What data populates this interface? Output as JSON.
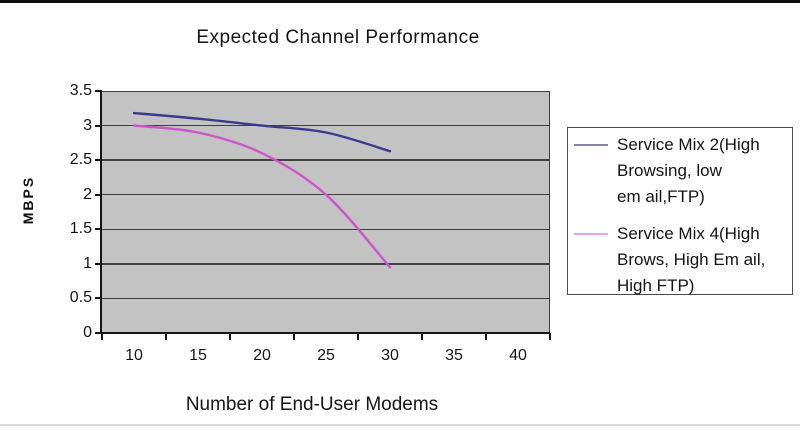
{
  "page": {
    "top_rule_color": "#0d0d0d",
    "bottom_rule_color": "#dcdcdc",
    "background": "#ffffff"
  },
  "chart": {
    "title": "Expected Channel Performance",
    "y_axis": {
      "label": "MBPS"
    },
    "x_axis": {
      "label": "Number of End-User Modems"
    },
    "colors": {
      "plot_background": "#c3c3c3",
      "gridline": "#3f3f3f",
      "axis": "#141414"
    }
  },
  "legend": {
    "entries": [
      {
        "lines": [
          "Service Mix 2(High",
          "Browsing, low",
          "em ail,FTP)"
        ],
        "sample_color": "#8484b0"
      },
      {
        "lines": [
          "Service Mix 4(High",
          "Brows, High Em ail,",
          "High FTP)"
        ],
        "sample_color": "#eda0e2"
      }
    ]
  },
  "chart_data": {
    "type": "line",
    "title": "Expected Channel Performance",
    "xlabel": "Number of End-User Modems",
    "ylabel": "MBPS",
    "x_ticks": [
      10,
      15,
      20,
      25,
      30,
      35,
      40
    ],
    "y_ticks": [
      3.5,
      3,
      2.5,
      2,
      1.5,
      1,
      0.5,
      0
    ],
    "xlim": [
      7.5,
      42.5
    ],
    "ylim": [
      0,
      3.5
    ],
    "grid": "horizontal",
    "legend_position": "right",
    "smoothed_lines": true,
    "x": [
      10,
      15,
      20,
      25,
      30
    ],
    "series": [
      {
        "name": "Service Mix 2 (High Browsing, low email, FTP)",
        "color": "#3a3a8c",
        "values": [
          3.18,
          3.1,
          3.0,
          2.9,
          2.63
        ]
      },
      {
        "name": "Service Mix 4 (High Brows, High Email, High FTP)",
        "color": "#cc55cc",
        "values": [
          3.0,
          2.9,
          2.6,
          2.0,
          0.95
        ]
      }
    ]
  }
}
